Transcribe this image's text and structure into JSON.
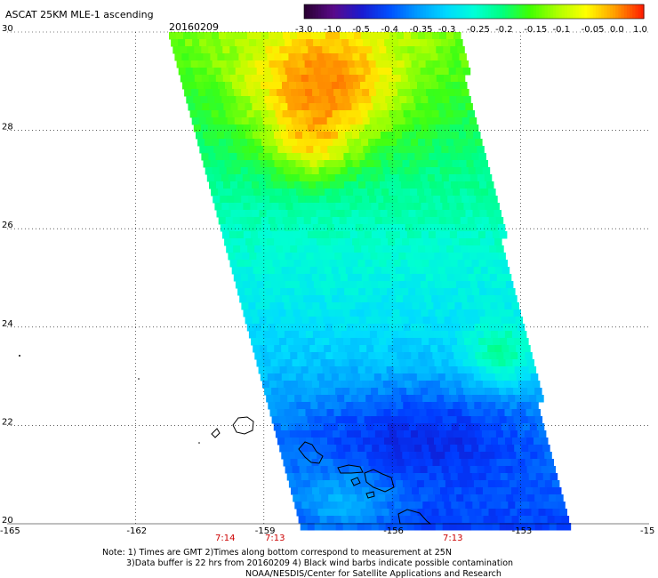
{
  "title": "ASCAT 25KM MLE-1 ascending",
  "date": "20160209",
  "colorbar": {
    "labels": [
      "-3.0",
      "-1.0",
      "-0.5",
      "-0.4",
      "-0.35",
      "-0.3",
      "-0.25",
      "-0.2",
      "-0.15",
      "-0.1",
      "-0.05",
      "0.0",
      "1.0"
    ],
    "colors": [
      "#2a0033",
      "#5a0a8a",
      "#1a1ad0",
      "#0050ff",
      "#009cff",
      "#00d8ff",
      "#00ffd8",
      "#00ff80",
      "#40ff00",
      "#b0ff00",
      "#ffff00",
      "#ffa000",
      "#ff2000"
    ]
  },
  "axes": {
    "x_ticks": [
      "-165",
      "-162",
      "-159",
      "-156",
      "-153",
      "-15"
    ],
    "y_ticks": [
      "30",
      "28",
      "26",
      "24",
      "22",
      "20"
    ]
  },
  "times": [
    "7:14",
    "7:13",
    "7:13"
  ],
  "notes": {
    "line1": "Note: 1) Times are GMT 2)Times along bottom correspond to measurement at 25N",
    "line2": "3)Data buffer is 22 hrs from 20160209 4) Black wind barbs indicate possible contamination",
    "line3": "NOAA/NESDIS/Center for Satellite Applications and Research"
  }
}
